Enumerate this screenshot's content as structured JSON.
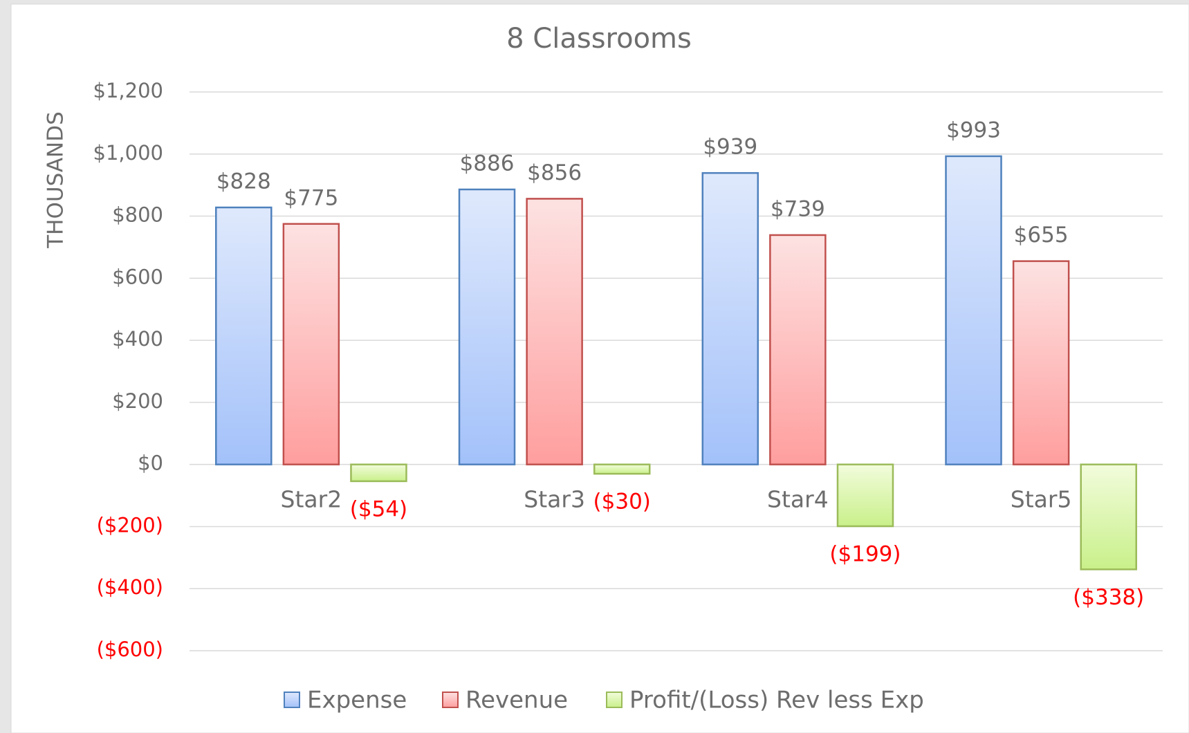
{
  "chart_data": {
    "type": "bar",
    "title": "8 Classrooms",
    "y_axis_label": "THOUSANDS",
    "categories": [
      "Star2",
      "Star3",
      "Star4",
      "Star5"
    ],
    "series": [
      {
        "name": "Expense",
        "color": "#4f81bd",
        "values": [
          828,
          886,
          939,
          993
        ],
        "value_labels": [
          "$828",
          "$886",
          "$939",
          "$993"
        ]
      },
      {
        "name": "Revenue",
        "color": "#c0504d",
        "values": [
          775,
          856,
          739,
          655
        ],
        "value_labels": [
          "$775",
          "$856",
          "$739",
          "$655"
        ]
      },
      {
        "name": "Profit/(Loss) Rev less Exp",
        "color": "#9bbb59",
        "values": [
          -54,
          -30,
          -199,
          -338
        ],
        "value_labels": [
          "($54)",
          "($30)",
          "($199)",
          "($338)"
        ]
      }
    ],
    "ylim": [
      -600,
      1200
    ],
    "yticks": [
      {
        "value": 1200,
        "label": "$1,200"
      },
      {
        "value": 1000,
        "label": "$1,000"
      },
      {
        "value": 800,
        "label": "$800"
      },
      {
        "value": 600,
        "label": "$600"
      },
      {
        "value": 400,
        "label": "$400"
      },
      {
        "value": 200,
        "label": "$200"
      },
      {
        "value": 0,
        "label": "$0"
      },
      {
        "value": -200,
        "label": "($200)"
      },
      {
        "value": -400,
        "label": "($400)"
      },
      {
        "value": -600,
        "label": "($600)"
      }
    ],
    "grid": true,
    "legend": "bottom",
    "negative_color": "#ff0000"
  }
}
